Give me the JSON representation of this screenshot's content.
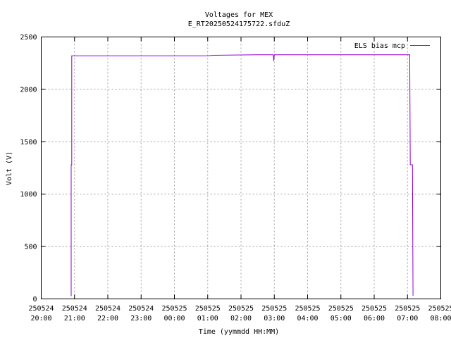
{
  "chart_data": {
    "type": "line",
    "title": "Voltages for MEX",
    "subtitle": "E_RT20250524175722.sfduZ",
    "xlabel": "Time (yymmdd HH:MM)",
    "ylabel": "Volt (V)",
    "ylim": [
      0,
      2500
    ],
    "yticks": [
      "0",
      "500",
      "1000",
      "1500",
      "2000",
      "2500"
    ],
    "xlim": [
      "2025-05-24 20:00",
      "2025-05-25 08:00"
    ],
    "xticks": [
      {
        "date": "250524",
        "time": "20:00"
      },
      {
        "date": "250524",
        "time": "21:00"
      },
      {
        "date": "250524",
        "time": "22:00"
      },
      {
        "date": "250524",
        "time": "23:00"
      },
      {
        "date": "250525",
        "time": "00:00"
      },
      {
        "date": "250525",
        "time": "01:00"
      },
      {
        "date": "250525",
        "time": "02:00"
      },
      {
        "date": "250525",
        "time": "03:00"
      },
      {
        "date": "250525",
        "time": "04:00"
      },
      {
        "date": "250525",
        "time": "05:00"
      },
      {
        "date": "250525",
        "time": "06:00"
      },
      {
        "date": "250525",
        "time": "07:00"
      },
      {
        "date": "250525",
        "time": "08:00"
      }
    ],
    "grid": true,
    "legend_position": "top-right",
    "series": [
      {
        "name": "ELS bias mcp",
        "color": "#9400d3",
        "points": [
          [
            "2025-05-24 20:53",
            30
          ],
          [
            "2025-05-24 20:54",
            30
          ],
          [
            "2025-05-24 20:54",
            1280
          ],
          [
            "2025-05-24 20:55",
            1280
          ],
          [
            "2025-05-24 20:55",
            2320
          ],
          [
            "2025-05-25 01:00",
            2320
          ],
          [
            "2025-05-25 01:10",
            2325
          ],
          [
            "2025-05-25 02:30",
            2330
          ],
          [
            "2025-05-25 02:58",
            2330
          ],
          [
            "2025-05-25 02:59",
            2270
          ],
          [
            "2025-05-25 03:00",
            2330
          ],
          [
            "2025-05-25 05:00",
            2330
          ],
          [
            "2025-05-25 06:00",
            2330
          ],
          [
            "2025-05-25 07:04",
            2330
          ],
          [
            "2025-05-25 07:05",
            1280
          ],
          [
            "2025-05-25 07:09",
            1280
          ],
          [
            "2025-05-25 07:10",
            30
          ]
        ]
      }
    ]
  }
}
